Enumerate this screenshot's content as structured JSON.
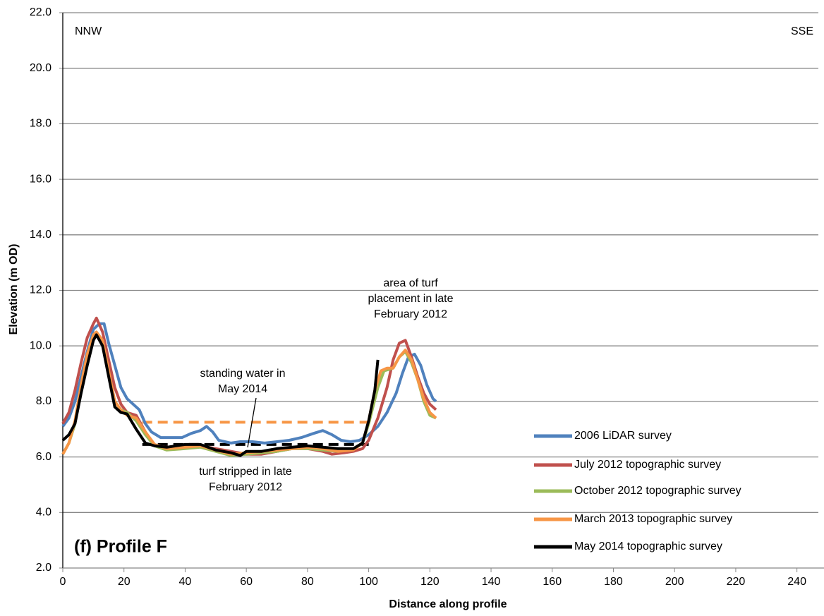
{
  "chart_data": {
    "type": "line",
    "xlabel": "Distance along profile",
    "ylabel": "Elevation (m OD)",
    "xlim": [
      0,
      247
    ],
    "ylim": [
      2,
      22
    ],
    "xticks": [
      0,
      20,
      40,
      60,
      80,
      100,
      120,
      140,
      160,
      180,
      200,
      220,
      240
    ],
    "yticks": [
      {
        "value": 2,
        "label": "2.0"
      },
      {
        "value": 4,
        "label": "4.0"
      },
      {
        "value": 6,
        "label": "6.0"
      },
      {
        "value": 8,
        "label": "8.0"
      },
      {
        "value": 10,
        "label": "10.0"
      },
      {
        "value": 12,
        "label": "12.0"
      },
      {
        "value": 14,
        "label": "14.0"
      },
      {
        "value": 16,
        "label": "16.0"
      },
      {
        "value": 18,
        "label": "18.0"
      },
      {
        "value": 20,
        "label": "20.0"
      },
      {
        "value": 22,
        "label": "22.0"
      }
    ],
    "grid": true,
    "legend": "lower right",
    "series": [
      {
        "name": "2006 LiDAR survey",
        "color": "#4f81bd",
        "x": [
          0,
          2,
          4,
          6,
          8,
          10,
          12,
          13.5,
          15,
          17,
          19,
          21,
          23,
          25,
          27,
          29,
          32,
          36,
          39,
          42,
          45,
          47,
          49,
          51,
          55,
          58,
          62,
          66,
          70,
          74,
          78,
          82,
          85,
          88,
          91,
          94,
          97,
          100,
          103,
          106,
          109,
          111,
          113,
          115,
          117,
          119,
          121,
          122
        ],
        "values": [
          7.1,
          7.4,
          8.0,
          8.9,
          9.8,
          10.6,
          10.8,
          10.8,
          10.1,
          9.3,
          8.5,
          8.1,
          7.9,
          7.7,
          7.2,
          6.9,
          6.7,
          6.7,
          6.7,
          6.85,
          6.95,
          7.1,
          6.9,
          6.6,
          6.5,
          6.55,
          6.55,
          6.5,
          6.55,
          6.6,
          6.7,
          6.85,
          6.95,
          6.8,
          6.6,
          6.55,
          6.6,
          6.8,
          7.1,
          7.6,
          8.3,
          9.0,
          9.6,
          9.7,
          9.3,
          8.6,
          8.1,
          8.0
        ]
      },
      {
        "name": "July 2012 topographic survey",
        "color": "#c0504d",
        "x": [
          0,
          2,
          4,
          6,
          8,
          10,
          11,
          13,
          15,
          17,
          19,
          21,
          24,
          27,
          30,
          34,
          40,
          45,
          50,
          55,
          60,
          65,
          70,
          75,
          80,
          85,
          88,
          92,
          95,
          98,
          100,
          103,
          106,
          108,
          110,
          112,
          114,
          116,
          118,
          120,
          122
        ],
        "values": [
          7.2,
          7.6,
          8.4,
          9.4,
          10.3,
          10.8,
          11.0,
          10.5,
          9.5,
          8.5,
          7.9,
          7.6,
          7.5,
          6.9,
          6.4,
          6.35,
          6.4,
          6.4,
          6.3,
          6.2,
          6.1,
          6.1,
          6.2,
          6.3,
          6.3,
          6.2,
          6.1,
          6.15,
          6.2,
          6.3,
          6.6,
          7.4,
          8.5,
          9.5,
          10.1,
          10.2,
          9.6,
          8.9,
          8.3,
          7.9,
          7.7
        ]
      },
      {
        "name": "October 2012 topographic survey",
        "color": "#9bbb59",
        "x": [
          0,
          2,
          4,
          6,
          8,
          10,
          11,
          13,
          15,
          17,
          19,
          21,
          24,
          27,
          30,
          34,
          40,
          45,
          50,
          55,
          60,
          65,
          70,
          75,
          80,
          85,
          90,
          95,
          98,
          100,
          103,
          105,
          108,
          110,
          112,
          114,
          116,
          118,
          120,
          122
        ],
        "values": [
          6.1,
          6.5,
          7.2,
          8.5,
          9.6,
          10.3,
          10.4,
          10.1,
          9.0,
          8.0,
          7.7,
          7.6,
          7.3,
          6.8,
          6.4,
          6.25,
          6.3,
          6.35,
          6.2,
          6.05,
          6.1,
          6.15,
          6.2,
          6.3,
          6.3,
          6.25,
          6.2,
          6.3,
          6.5,
          7.2,
          8.5,
          9.1,
          9.2,
          9.6,
          9.8,
          9.4,
          8.8,
          8.0,
          7.5,
          7.4
        ]
      },
      {
        "name": "March 2013 topographic survey",
        "color": "#f79646",
        "x": [
          0,
          2,
          4,
          6,
          8,
          10,
          11,
          13,
          15,
          17,
          19,
          21,
          24,
          27,
          30,
          34,
          40,
          45,
          50,
          55,
          60,
          65,
          70,
          75,
          80,
          85,
          90,
          95,
          98,
          100,
          102,
          104,
          106,
          108,
          110,
          112,
          114,
          116,
          118,
          120,
          122
        ],
        "values": [
          6.1,
          6.5,
          7.3,
          8.6,
          9.7,
          10.4,
          10.5,
          10.2,
          9.1,
          8.0,
          7.7,
          7.5,
          7.4,
          6.9,
          6.45,
          6.3,
          6.35,
          6.4,
          6.25,
          6.1,
          6.15,
          6.2,
          6.25,
          6.3,
          6.35,
          6.3,
          6.2,
          6.25,
          6.5,
          7.3,
          8.4,
          9.1,
          9.2,
          9.2,
          9.6,
          9.85,
          9.5,
          8.8,
          8.1,
          7.6,
          7.4
        ]
      },
      {
        "name": "May 2014 topographic survey",
        "color": "#000000",
        "x": [
          0,
          2,
          4,
          6,
          8,
          10,
          11,
          13,
          15,
          17,
          19,
          21,
          24,
          27,
          30,
          34,
          40,
          45,
          50,
          55,
          58,
          60,
          65,
          70,
          75,
          80,
          85,
          90,
          95,
          98,
          100,
          102,
          103
        ],
        "values": [
          6.6,
          6.8,
          7.2,
          8.3,
          9.3,
          10.2,
          10.4,
          10.0,
          8.9,
          7.8,
          7.6,
          7.55,
          7.0,
          6.5,
          6.4,
          6.35,
          6.45,
          6.45,
          6.25,
          6.15,
          6.05,
          6.2,
          6.2,
          6.3,
          6.35,
          6.4,
          6.35,
          6.3,
          6.3,
          6.5,
          7.3,
          8.4,
          9.5
        ]
      }
    ],
    "reference_lines": [
      {
        "color": "#f79646",
        "x": [
          26,
          100
        ],
        "values": [
          7.25,
          7.25
        ]
      },
      {
        "color": "#000000",
        "x": [
          26,
          100
        ],
        "values": [
          6.45,
          6.45
        ]
      }
    ],
    "annotations": [
      {
        "lines": [
          "NNW"
        ]
      },
      {
        "lines": [
          "SSE"
        ]
      },
      {
        "lines": [
          "(f) Profile F"
        ]
      },
      {
        "lines": [
          "area of turf",
          "placement in late",
          "February 2012"
        ]
      },
      {
        "lines": [
          "standing water in",
          "May 2014"
        ]
      },
      {
        "lines": [
          "turf stripped in late",
          "February 2012"
        ]
      }
    ]
  }
}
